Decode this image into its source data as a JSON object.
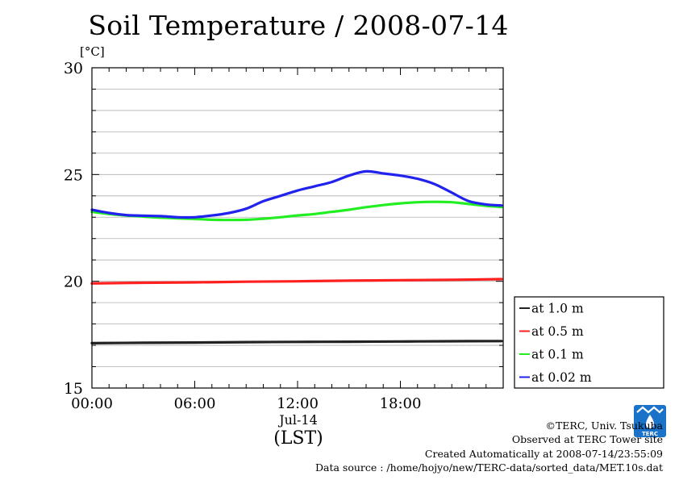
{
  "chart_data": {
    "type": "line",
    "title": "Soil Temperature / 2008-07-14",
    "ylabel": "[°C]",
    "xlabel": "(LST)",
    "x_sublabel": "Jul-14",
    "ylim": [
      15,
      30
    ],
    "yticks": [
      "15",
      "20",
      "25",
      "30"
    ],
    "xlim": [
      0,
      24
    ],
    "xticks": [
      {
        "x": 0,
        "label": "00:00"
      },
      {
        "x": 6,
        "label": "06:00"
      },
      {
        "x": 12,
        "label": "12:00"
      },
      {
        "x": 18,
        "label": "18:00"
      }
    ],
    "grid": true,
    "legend_position": "right",
    "series": [
      {
        "name": "at 1.0 m",
        "color": "#222222",
        "x": [
          0,
          3,
          6,
          9,
          12,
          15,
          18,
          21,
          23.9
        ],
        "values": [
          17.1,
          17.12,
          17.13,
          17.15,
          17.16,
          17.17,
          17.18,
          17.19,
          17.2
        ]
      },
      {
        "name": "at 0.5 m",
        "color": "#ff2020",
        "x": [
          0,
          3,
          6,
          9,
          12,
          15,
          18,
          21,
          23.9
        ],
        "values": [
          19.9,
          19.93,
          19.95,
          19.98,
          20.0,
          20.03,
          20.05,
          20.07,
          20.1
        ]
      },
      {
        "name": "at 0.1 m",
        "color": "#22ee22",
        "x": [
          0,
          1,
          2,
          3,
          4,
          5,
          6,
          7,
          8,
          9,
          10,
          11,
          12,
          13,
          14,
          15,
          16,
          17,
          18,
          19,
          20,
          21,
          22,
          23,
          23.9
        ],
        "values": [
          23.25,
          23.15,
          23.08,
          23.03,
          22.98,
          22.95,
          22.92,
          22.88,
          22.87,
          22.88,
          22.93,
          23.0,
          23.08,
          23.15,
          23.25,
          23.35,
          23.47,
          23.57,
          23.65,
          23.7,
          23.72,
          23.7,
          23.62,
          23.53,
          23.48
        ]
      },
      {
        "name": "at 0.02 m",
        "color": "#2222ee",
        "x": [
          0,
          1,
          2,
          3,
          4,
          5,
          6,
          7,
          8,
          9,
          10,
          11,
          12,
          13,
          14,
          15,
          16,
          17,
          18,
          19,
          20,
          21,
          22,
          23,
          23.9
        ],
        "values": [
          23.35,
          23.2,
          23.1,
          23.07,
          23.05,
          23.0,
          23.0,
          23.08,
          23.2,
          23.4,
          23.75,
          24.0,
          24.25,
          24.45,
          24.65,
          24.95,
          25.15,
          25.05,
          24.95,
          24.8,
          24.55,
          24.15,
          23.75,
          23.6,
          23.55
        ]
      }
    ]
  },
  "credits": {
    "copyright": "©TERC, Univ. Tsukuba",
    "observed": "Observed at TERC Tower site",
    "created": "Created Automatically at 2008-07-14/23:55:09",
    "source": "Data source : /home/hojyo/new/TERC-data/sorted_data/MET.10s.dat"
  },
  "logo": {
    "name": "terc-logo",
    "text": "TERC",
    "color": "#1a73c8"
  }
}
